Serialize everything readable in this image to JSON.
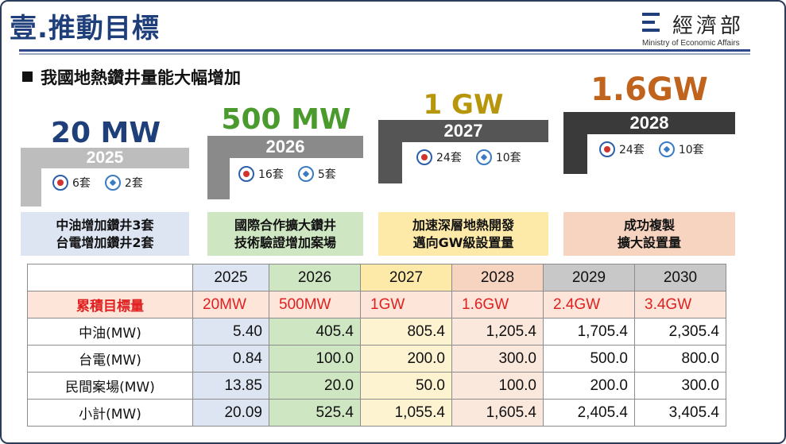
{
  "header": {
    "title": "壹.推動目標",
    "logo_name": "經濟部",
    "logo_english": "Ministry of Economic Affairs"
  },
  "subtitle": "我國地熱鑽井量能大幅增加",
  "stages": [
    {
      "capacity": "20 MW",
      "year": "2025",
      "cpc_units": "6套",
      "taipower_units": "2套",
      "description": [
        "中油增加鑽井3套",
        "台電增加鑽井2套"
      ]
    },
    {
      "capacity": "500 MW",
      "year": "2026",
      "cpc_units": "16套",
      "taipower_units": "5套",
      "description": [
        "國際合作擴大鑽井",
        "技術驗證增加案場"
      ]
    },
    {
      "capacity": "1 GW",
      "year": "2027",
      "cpc_units": "24套",
      "taipower_units": "10套",
      "description": [
        "加速深層地熱開發",
        "邁向GW級設置量"
      ]
    },
    {
      "capacity": "1.6GW",
      "year": "2028",
      "cpc_units": "24套",
      "taipower_units": "10套",
      "description": [
        "成功複製",
        "擴大設置量"
      ]
    }
  ],
  "colors": {
    "stage1_text": "#1f3f7a",
    "stage2_text": "#4a9a2e",
    "stage3_text": "#b8960c",
    "stage4_text": "#c0631c",
    "desc1_bg": "#dde5f3",
    "desc2_bg": "#cfe6c2",
    "desc3_bg": "#fde9a8",
    "desc4_bg": "#f6d4c0",
    "highlight_red": "#e02020"
  },
  "table": {
    "years": [
      "2025",
      "2026",
      "2027",
      "2028",
      "2029",
      "2030"
    ],
    "cumulative_label": "累積目標量",
    "cumulative": [
      "20MW",
      "500MW",
      "1GW",
      "1.6GW",
      "2.4GW",
      "3.4GW"
    ],
    "rows": [
      {
        "label": "中油(MW)",
        "values": [
          "5.40",
          "405.4",
          "805.4",
          "1,205.4",
          "1,705.4",
          "2,305.4"
        ]
      },
      {
        "label": "台電(MW)",
        "values": [
          "0.84",
          "100.0",
          "200.0",
          "300.0",
          "500.0",
          "800.0"
        ]
      },
      {
        "label": "民間案場(MW)",
        "values": [
          "13.85",
          "20.0",
          "50.0",
          "100.0",
          "200.0",
          "300.0"
        ]
      },
      {
        "label": "小計(MW)",
        "values": [
          "20.09",
          "525.4",
          "1,055.4",
          "1,605.4",
          "2,405.4",
          "3,405.4"
        ]
      }
    ]
  }
}
